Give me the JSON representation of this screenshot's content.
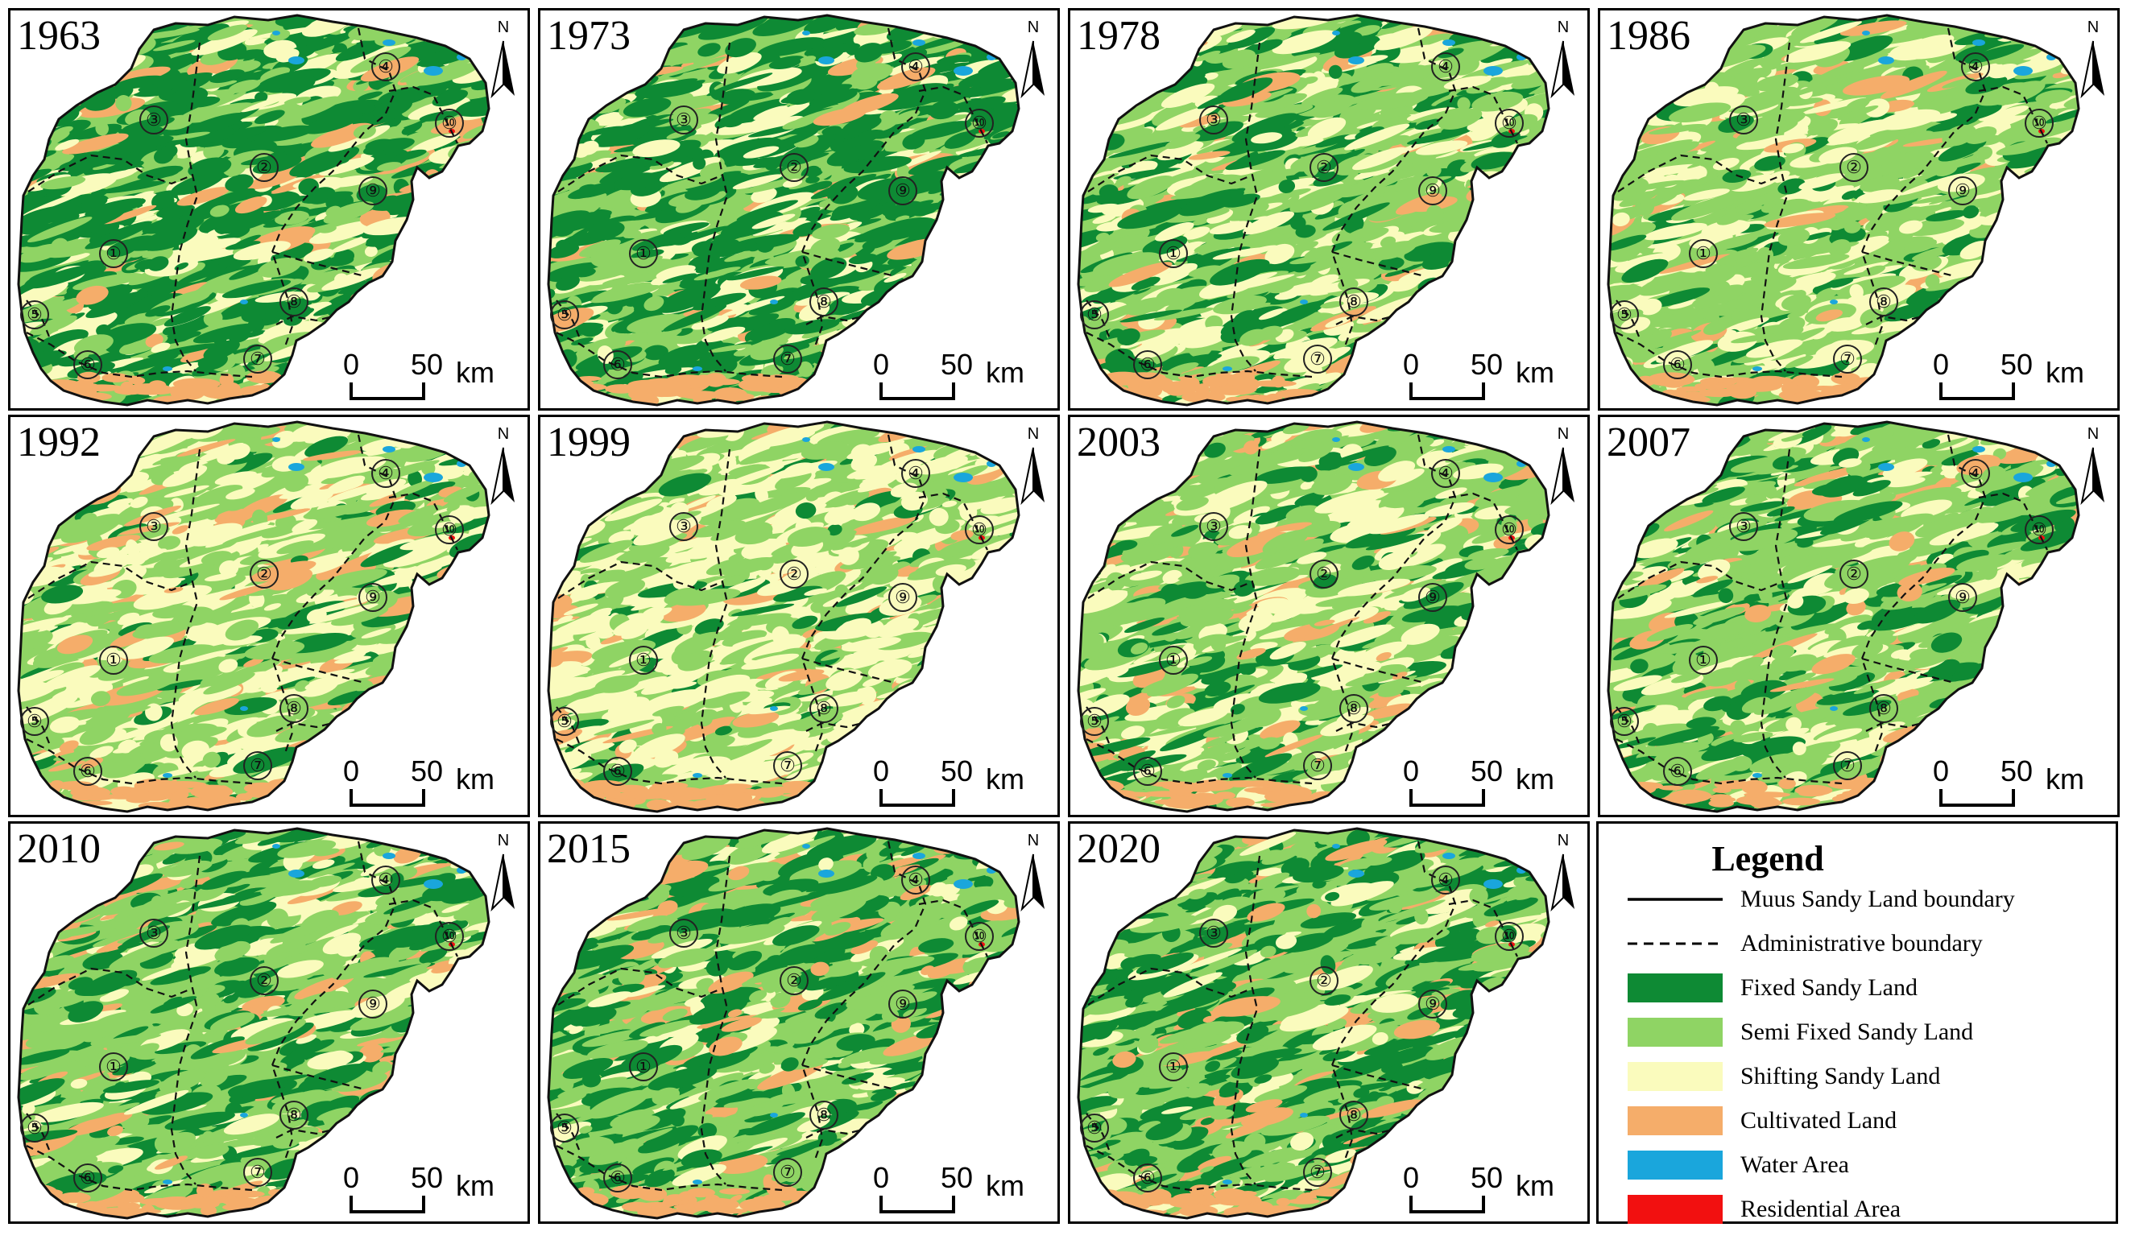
{
  "figure": {
    "panels": [
      {
        "year": "1963",
        "mix": {
          "fixed": 0.55,
          "semi": 0.25,
          "shifting": 0.15,
          "cultivated": 0.05
        }
      },
      {
        "year": "1973",
        "mix": {
          "fixed": 0.5,
          "semi": 0.28,
          "shifting": 0.17,
          "cultivated": 0.05
        }
      },
      {
        "year": "1978",
        "mix": {
          "fixed": 0.25,
          "semi": 0.42,
          "shifting": 0.27,
          "cultivated": 0.06
        }
      },
      {
        "year": "1986",
        "mix": {
          "fixed": 0.1,
          "semi": 0.5,
          "shifting": 0.34,
          "cultivated": 0.06
        }
      },
      {
        "year": "1992",
        "mix": {
          "fixed": 0.08,
          "semi": 0.45,
          "shifting": 0.4,
          "cultivated": 0.07
        }
      },
      {
        "year": "1999",
        "mix": {
          "fixed": 0.06,
          "semi": 0.4,
          "shifting": 0.47,
          "cultivated": 0.07
        }
      },
      {
        "year": "2003",
        "mix": {
          "fixed": 0.15,
          "semi": 0.5,
          "shifting": 0.28,
          "cultivated": 0.07
        }
      },
      {
        "year": "2007",
        "mix": {
          "fixed": 0.2,
          "semi": 0.5,
          "shifting": 0.23,
          "cultivated": 0.07
        }
      },
      {
        "year": "2010",
        "mix": {
          "fixed": 0.3,
          "semi": 0.45,
          "shifting": 0.17,
          "cultivated": 0.08
        }
      },
      {
        "year": "2015",
        "mix": {
          "fixed": 0.32,
          "semi": 0.46,
          "shifting": 0.14,
          "cultivated": 0.08
        }
      },
      {
        "year": "2020",
        "mix": {
          "fixed": 0.35,
          "semi": 0.46,
          "shifting": 0.11,
          "cultivated": 0.08
        }
      }
    ],
    "region_labels": [
      "①",
      "②",
      "③",
      "④",
      "⑤",
      "⑥",
      "⑦",
      "⑧",
      "⑨",
      "⑩"
    ],
    "north_letter": "N",
    "scale_bar": {
      "zero": "0",
      "fifty": "50",
      "unit": "km"
    }
  },
  "legend": {
    "title": "Legend",
    "items": [
      {
        "label": "Muus Sandy Land boundary",
        "symbol": "solid-line"
      },
      {
        "label": "Administrative boundary",
        "symbol": "dashed-line"
      },
      {
        "label": "Fixed Sandy Land",
        "symbol": "swatch",
        "color": "#0e8a34"
      },
      {
        "label": "Semi Fixed Sandy Land",
        "symbol": "swatch",
        "color": "#8fd464"
      },
      {
        "label": "Shifting Sandy Land",
        "symbol": "swatch",
        "color": "#fafbbd"
      },
      {
        "label": "Cultivated Land",
        "symbol": "swatch",
        "color": "#f5ad6a"
      },
      {
        "label": "Water Area",
        "symbol": "swatch",
        "color": "#1aa6dc"
      },
      {
        "label": "Residential Area",
        "symbol": "swatch",
        "color": "#f21010"
      }
    ]
  }
}
